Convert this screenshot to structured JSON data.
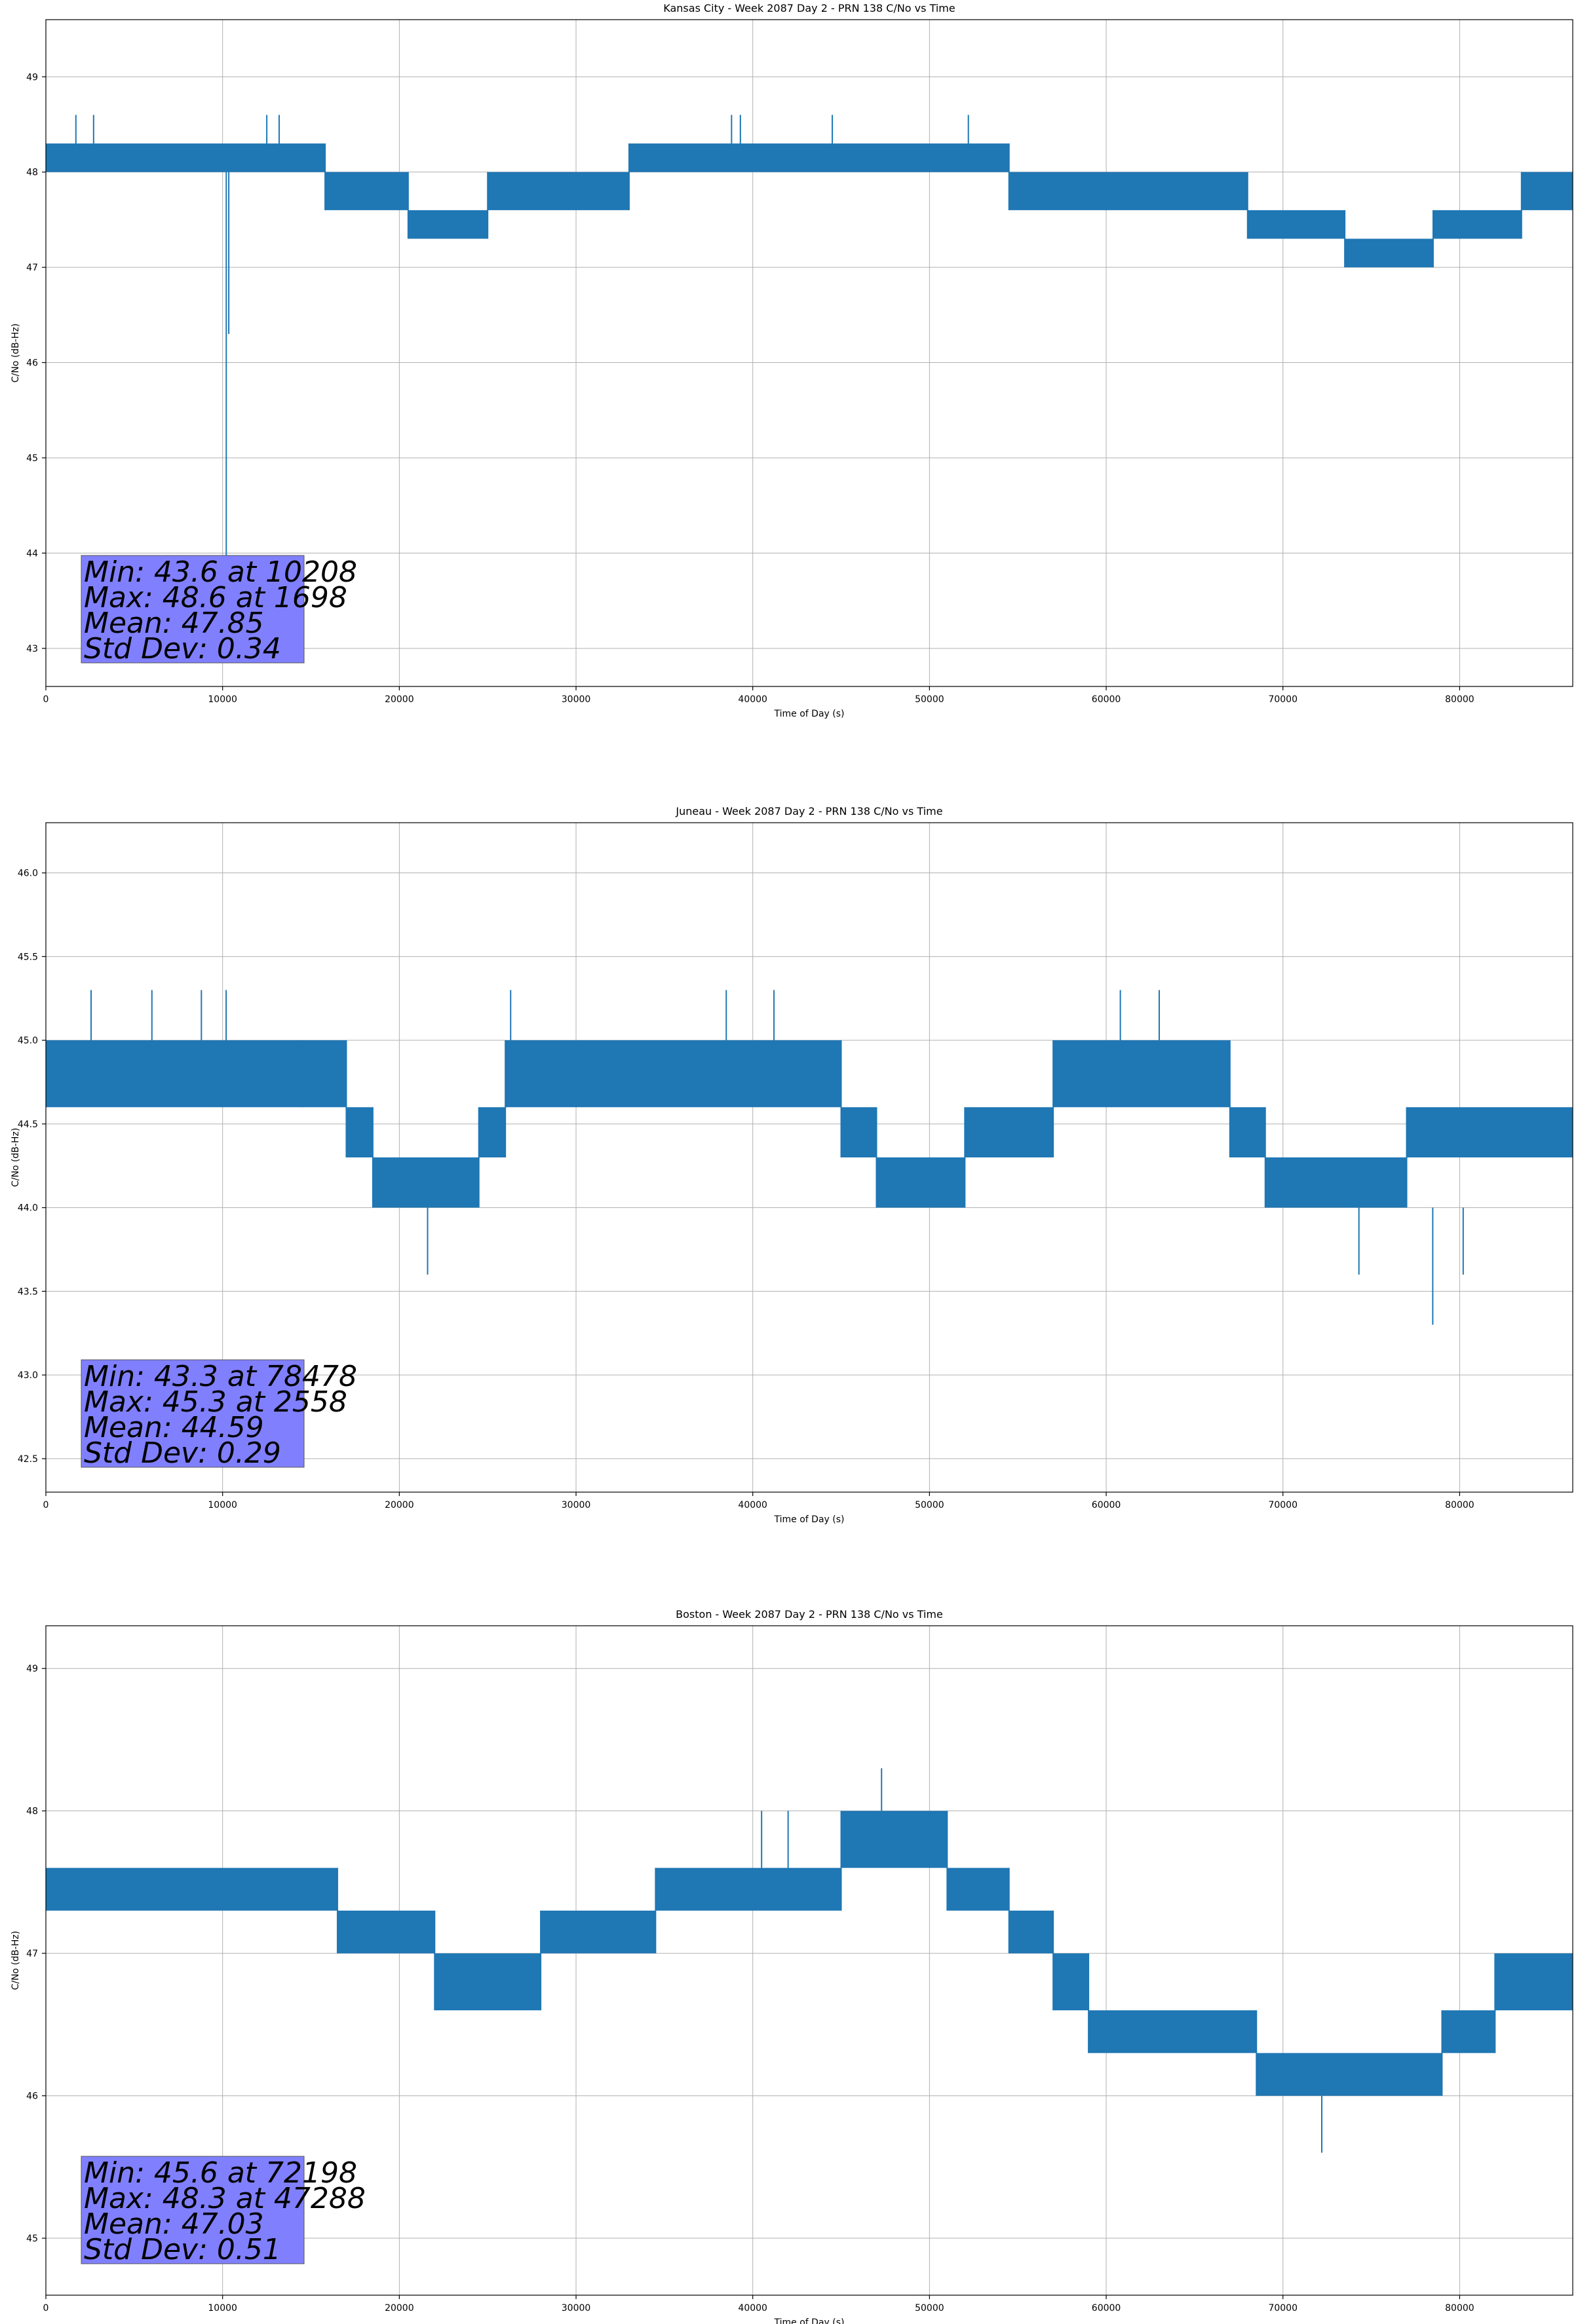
{
  "colors": {
    "series": "#1f77b4",
    "stats_box": "#8080ff",
    "grid": "#b0b0b0"
  },
  "chart_data": [
    {
      "type": "line",
      "title": "Kansas City - Week 2087 Day 2 - PRN 138 C/No vs Time",
      "xlabel": "Time of Day (s)",
      "ylabel": "C/No (dB-Hz)",
      "xlim": [
        0,
        86400
      ],
      "ylim": [
        42.6,
        49.6
      ],
      "xticks": [
        0,
        10000,
        20000,
        30000,
        40000,
        50000,
        60000,
        70000,
        80000
      ],
      "yticks": [
        43,
        44,
        45,
        46,
        47,
        48,
        49
      ],
      "ytick_labels": [
        "43",
        "44",
        "45",
        "46",
        "47",
        "48",
        "49"
      ],
      "grid": true,
      "series": [
        {
          "name": "PRN 138 C/No",
          "bands": [
            {
              "x0": 0,
              "x1": 15800,
              "lo": 48.0,
              "hi": 48.3
            },
            {
              "x0": 15800,
              "x1": 20500,
              "lo": 47.6,
              "hi": 48.0
            },
            {
              "x0": 20500,
              "x1": 25000,
              "lo": 47.3,
              "hi": 47.6
            },
            {
              "x0": 25000,
              "x1": 33000,
              "lo": 47.6,
              "hi": 48.0
            },
            {
              "x0": 33000,
              "x1": 54500,
              "lo": 48.0,
              "hi": 48.3
            },
            {
              "x0": 54500,
              "x1": 68000,
              "lo": 47.6,
              "hi": 48.0
            },
            {
              "x0": 68000,
              "x1": 73500,
              "lo": 47.3,
              "hi": 47.6
            },
            {
              "x0": 73500,
              "x1": 78500,
              "lo": 47.0,
              "hi": 47.3
            },
            {
              "x0": 78500,
              "x1": 83500,
              "lo": 47.3,
              "hi": 47.6
            },
            {
              "x0": 83500,
              "x1": 86400,
              "lo": 47.6,
              "hi": 48.0
            }
          ],
          "spikes": [
            {
              "x": 1698,
              "y0": 48.3,
              "y1": 48.6
            },
            {
              "x": 2700,
              "y0": 48.3,
              "y1": 48.6
            },
            {
              "x": 12500,
              "y0": 48.3,
              "y1": 48.6
            },
            {
              "x": 13200,
              "y0": 48.3,
              "y1": 48.6
            },
            {
              "x": 38800,
              "y0": 48.3,
              "y1": 48.6
            },
            {
              "x": 39300,
              "y0": 48.3,
              "y1": 48.6
            },
            {
              "x": 44500,
              "y0": 48.3,
              "y1": 48.6
            },
            {
              "x": 52200,
              "y0": 48.3,
              "y1": 48.6
            },
            {
              "x": 10208,
              "y0": 48.0,
              "y1": 43.6
            },
            {
              "x": 10350,
              "y0": 48.0,
              "y1": 46.3
            }
          ]
        }
      ],
      "stats": [
        "Min: 43.6 at 10208",
        "Max: 48.6 at 1698",
        "Mean: 47.85",
        "Std Dev: 0.34"
      ]
    },
    {
      "type": "line",
      "title": "Juneau - Week 2087 Day 2 - PRN 138 C/No vs Time",
      "xlabel": "Time of Day (s)",
      "ylabel": "C/No (dB-Hz)",
      "xlim": [
        0,
        86400
      ],
      "ylim": [
        42.3,
        46.3
      ],
      "xticks": [
        0,
        10000,
        20000,
        30000,
        40000,
        50000,
        60000,
        70000,
        80000
      ],
      "yticks": [
        42.5,
        43.0,
        43.5,
        44.0,
        44.5,
        45.0,
        45.5,
        46.0
      ],
      "ytick_labels": [
        "42.5",
        "43.0",
        "43.5",
        "44.0",
        "44.5",
        "45.0",
        "45.5",
        "46.0"
      ],
      "grid": true,
      "series": [
        {
          "name": "PRN 138 C/No",
          "bands": [
            {
              "x0": 0,
              "x1": 14500,
              "lo": 44.6,
              "hi": 45.0
            },
            {
              "x0": 14500,
              "x1": 17000,
              "lo": 44.6,
              "hi": 45.0
            },
            {
              "x0": 17000,
              "x1": 18500,
              "lo": 44.3,
              "hi": 44.6
            },
            {
              "x0": 18500,
              "x1": 24500,
              "lo": 44.0,
              "hi": 44.3
            },
            {
              "x0": 24500,
              "x1": 26000,
              "lo": 44.3,
              "hi": 44.6
            },
            {
              "x0": 26000,
              "x1": 45000,
              "lo": 44.6,
              "hi": 45.0
            },
            {
              "x0": 45000,
              "x1": 47000,
              "lo": 44.3,
              "hi": 44.6
            },
            {
              "x0": 47000,
              "x1": 52000,
              "lo": 44.0,
              "hi": 44.3
            },
            {
              "x0": 52000,
              "x1": 57000,
              "lo": 44.3,
              "hi": 44.6
            },
            {
              "x0": 57000,
              "x1": 67000,
              "lo": 44.6,
              "hi": 45.0
            },
            {
              "x0": 67000,
              "x1": 69000,
              "lo": 44.3,
              "hi": 44.6
            },
            {
              "x0": 69000,
              "x1": 77000,
              "lo": 44.0,
              "hi": 44.3
            },
            {
              "x0": 77000,
              "x1": 86400,
              "lo": 44.3,
              "hi": 44.6
            }
          ],
          "spikes": [
            {
              "x": 2558,
              "y0": 45.0,
              "y1": 45.3
            },
            {
              "x": 6000,
              "y0": 45.0,
              "y1": 45.3
            },
            {
              "x": 8800,
              "y0": 45.0,
              "y1": 45.3
            },
            {
              "x": 10200,
              "y0": 45.0,
              "y1": 45.3
            },
            {
              "x": 26300,
              "y0": 45.0,
              "y1": 45.3
            },
            {
              "x": 38500,
              "y0": 45.0,
              "y1": 45.3
            },
            {
              "x": 41200,
              "y0": 45.0,
              "y1": 45.3
            },
            {
              "x": 60800,
              "y0": 45.0,
              "y1": 45.3
            },
            {
              "x": 63000,
              "y0": 45.0,
              "y1": 45.3
            },
            {
              "x": 21600,
              "y0": 44.0,
              "y1": 43.6
            },
            {
              "x": 74300,
              "y0": 44.0,
              "y1": 43.6
            },
            {
              "x": 78478,
              "y0": 44.0,
              "y1": 43.3
            },
            {
              "x": 80200,
              "y0": 44.0,
              "y1": 43.6
            }
          ]
        }
      ],
      "stats": [
        "Min: 43.3 at 78478",
        "Max: 45.3 at 2558",
        "Mean: 44.59",
        "Std Dev: 0.29"
      ]
    },
    {
      "type": "line",
      "title": "Boston - Week 2087 Day 2 - PRN 138 C/No vs Time",
      "xlabel": "Time of Day (s)",
      "ylabel": "C/No (dB-Hz)",
      "xlim": [
        0,
        86400
      ],
      "ylim": [
        44.6,
        49.3
      ],
      "xticks": [
        0,
        10000,
        20000,
        30000,
        40000,
        50000,
        60000,
        70000,
        80000
      ],
      "yticks": [
        45,
        46,
        47,
        48,
        49
      ],
      "ytick_labels": [
        "45",
        "46",
        "47",
        "48",
        "49"
      ],
      "grid": true,
      "series": [
        {
          "name": "PRN 138 C/No",
          "bands": [
            {
              "x0": 0,
              "x1": 16500,
              "lo": 47.3,
              "hi": 47.6
            },
            {
              "x0": 16500,
              "x1": 22000,
              "lo": 47.0,
              "hi": 47.3
            },
            {
              "x0": 22000,
              "x1": 28000,
              "lo": 46.6,
              "hi": 47.0
            },
            {
              "x0": 28000,
              "x1": 34500,
              "lo": 47.0,
              "hi": 47.3
            },
            {
              "x0": 34500,
              "x1": 45000,
              "lo": 47.3,
              "hi": 47.6
            },
            {
              "x0": 45000,
              "x1": 51000,
              "lo": 47.6,
              "hi": 48.0
            },
            {
              "x0": 51000,
              "x1": 54500,
              "lo": 47.3,
              "hi": 47.6
            },
            {
              "x0": 54500,
              "x1": 57000,
              "lo": 47.0,
              "hi": 47.3
            },
            {
              "x0": 57000,
              "x1": 59000,
              "lo": 46.6,
              "hi": 47.0
            },
            {
              "x0": 59000,
              "x1": 68500,
              "lo": 46.3,
              "hi": 46.6
            },
            {
              "x0": 68500,
              "x1": 79000,
              "lo": 46.0,
              "hi": 46.3
            },
            {
              "x0": 79000,
              "x1": 82000,
              "lo": 46.3,
              "hi": 46.6
            },
            {
              "x0": 82000,
              "x1": 86400,
              "lo": 46.6,
              "hi": 47.0
            }
          ],
          "spikes": [
            {
              "x": 40500,
              "y0": 47.6,
              "y1": 48.0
            },
            {
              "x": 42000,
              "y0": 47.6,
              "y1": 48.0
            },
            {
              "x": 47288,
              "y0": 48.0,
              "y1": 48.3
            },
            {
              "x": 72198,
              "y0": 46.0,
              "y1": 45.6
            }
          ]
        }
      ],
      "stats": [
        "Min: 45.6 at 72198",
        "Max: 48.3 at 47288",
        "Mean: 47.03",
        "Std Dev: 0.51"
      ]
    }
  ]
}
